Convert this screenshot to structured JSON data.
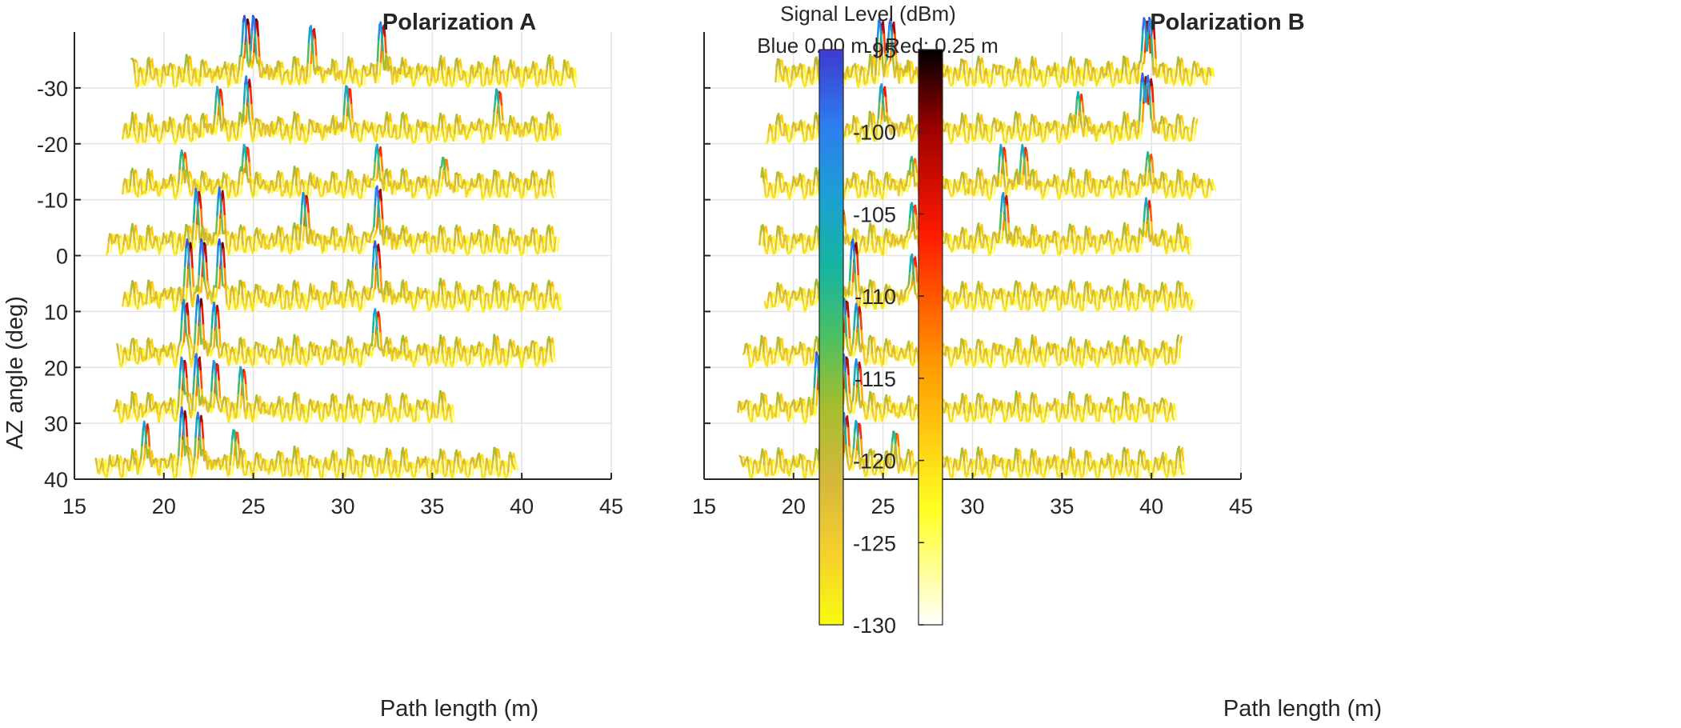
{
  "chart_data": [
    {
      "type": "line",
      "title": "Polarization A",
      "xlabel": "Path length (m)",
      "ylabel": "AZ angle (deg)",
      "xlim": [
        15,
        45
      ],
      "ylim": [
        40,
        -40
      ],
      "xticks": [
        15,
        20,
        25,
        30,
        35,
        40,
        45
      ],
      "yticks": [
        -30,
        -20,
        -10,
        0,
        10,
        20,
        30,
        40
      ],
      "grid": true,
      "series": [
        {
          "az": -30,
          "x_range": [
            18.2,
            43.0
          ],
          "peaks": [
            [
              24.5,
              -94
            ],
            [
              25.0,
              -95
            ],
            [
              28.2,
              -100
            ],
            [
              32.1,
              -98
            ]
          ]
        },
        {
          "az": -20,
          "x_range": [
            17.7,
            42.0
          ],
          "peaks": [
            [
              23.0,
              -103
            ],
            [
              24.6,
              -98
            ],
            [
              30.2,
              -102
            ],
            [
              38.6,
              -104
            ]
          ]
        },
        {
          "az": -10,
          "x_range": [
            17.7,
            41.8
          ],
          "peaks": [
            [
              21.0,
              -107
            ],
            [
              24.5,
              -104
            ],
            [
              31.9,
              -104
            ],
            [
              35.6,
              -110
            ]
          ]
        },
        {
          "az": 0,
          "x_range": [
            16.8,
            41.9
          ],
          "peaks": [
            [
              21.8,
              -98
            ],
            [
              23.1,
              -98
            ],
            [
              27.8,
              -100
            ],
            [
              31.9,
              -96
            ]
          ]
        },
        {
          "az": 10,
          "x_range": [
            17.7,
            42.2
          ],
          "peaks": [
            [
              21.3,
              -95
            ],
            [
              22.1,
              -95
            ],
            [
              23.1,
              -94
            ],
            [
              31.8,
              -96
            ]
          ]
        },
        {
          "az": 20,
          "x_range": [
            17.4,
            41.7
          ],
          "peaks": [
            [
              21.1,
              -98
            ],
            [
              21.9,
              -95
            ],
            [
              22.8,
              -99
            ],
            [
              31.8,
              -102
            ]
          ]
        },
        {
          "az": 30,
          "x_range": [
            17.2,
            36.1
          ],
          "peaks": [
            [
              21.0,
              -98
            ],
            [
              21.8,
              -97
            ],
            [
              22.8,
              -100
            ],
            [
              24.3,
              -103
            ]
          ]
        },
        {
          "az": 40,
          "x_range": [
            16.2,
            39.6
          ],
          "peaks": [
            [
              18.9,
              -103
            ],
            [
              21.0,
              -96
            ],
            [
              21.9,
              -98
            ],
            [
              23.9,
              -106
            ]
          ]
        }
      ]
    },
    {
      "type": "line",
      "title": "Polarization B",
      "xlabel": "Path length (m)",
      "ylabel": "",
      "xlim": [
        15,
        45
      ],
      "ylim": [
        40,
        -40
      ],
      "xticks": [
        15,
        20,
        25,
        30,
        35,
        40,
        45
      ],
      "yticks": [
        -30,
        -20,
        -10,
        0,
        10,
        20,
        30,
        40
      ],
      "grid": true,
      "series": [
        {
          "az": -30,
          "x_range": [
            19.0,
            43.3
          ],
          "peaks": [
            [
              24.8,
              -96
            ],
            [
              25.4,
              -97
            ],
            [
              39.6,
              -96
            ],
            [
              39.9,
              -96
            ]
          ]
        },
        {
          "az": -20,
          "x_range": [
            18.5,
            42.4
          ],
          "peaks": [
            [
              24.9,
              -101
            ],
            [
              35.9,
              -106
            ],
            [
              39.5,
              -97
            ],
            [
              39.8,
              -97
            ]
          ]
        },
        {
          "az": -10,
          "x_range": [
            18.2,
            43.4
          ],
          "peaks": [
            [
              26.6,
              -110
            ],
            [
              31.6,
              -104
            ],
            [
              32.8,
              -104
            ],
            [
              39.8,
              -108
            ]
          ]
        },
        {
          "az": 0,
          "x_range": [
            18.1,
            42.1
          ],
          "peaks": [
            [
              22.6,
              -107
            ],
            [
              26.6,
              -105
            ],
            [
              31.7,
              -100
            ],
            [
              39.7,
              -103
            ]
          ]
        },
        {
          "az": 10,
          "x_range": [
            18.4,
            42.3
          ],
          "peaks": [
            [
              21.7,
              -96
            ],
            [
              22.2,
              -97
            ],
            [
              23.3,
              -95
            ],
            [
              26.6,
              -103
            ]
          ]
        },
        {
          "az": 20,
          "x_range": [
            17.2,
            41.5
          ],
          "peaks": [
            [
              21.6,
              -102
            ],
            [
              22.0,
              -100
            ],
            [
              22.8,
              -96
            ],
            [
              23.5,
              -100
            ]
          ]
        },
        {
          "az": 30,
          "x_range": [
            16.9,
            41.3
          ],
          "peaks": [
            [
              21.3,
              -96
            ],
            [
              21.8,
              -95
            ],
            [
              22.8,
              -96
            ],
            [
              23.5,
              -99
            ]
          ]
        },
        {
          "az": 40,
          "x_range": [
            17.0,
            41.8
          ],
          "peaks": [
            [
              21.6,
              -102
            ],
            [
              22.8,
              -98
            ],
            [
              23.5,
              -102
            ],
            [
              25.6,
              -107
            ]
          ]
        }
      ]
    }
  ],
  "colorbar": {
    "title_line1": "Signal Level (dBm)",
    "title_line2": "Blue 0.00 m | Red: 0.25 m",
    "min": -130,
    "max": -95,
    "ticks": [
      "-95",
      "-100",
      "-105",
      "-110",
      "-115",
      "-120",
      "-125",
      "-130"
    ],
    "tick_values": [
      -95,
      -100,
      -105,
      -110,
      -115,
      -120,
      -125,
      -130
    ],
    "colormap_blue": "parula",
    "colormap_red": "hot"
  }
}
